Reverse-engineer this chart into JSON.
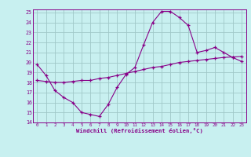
{
  "background_color": "#c8f0f0",
  "grid_color": "#a0c8c8",
  "line_color": "#880088",
  "xlabel": "Windchill (Refroidissement éolien,°C)",
  "xlim": [
    -0.5,
    23.5
  ],
  "ylim": [
    14,
    25.3
  ],
  "yticks": [
    14,
    15,
    16,
    17,
    18,
    19,
    20,
    21,
    22,
    23,
    24,
    25
  ],
  "xticks": [
    0,
    1,
    2,
    3,
    4,
    5,
    6,
    7,
    8,
    9,
    10,
    11,
    12,
    13,
    14,
    15,
    16,
    17,
    18,
    19,
    20,
    21,
    22,
    23
  ],
  "curve1_x": [
    0,
    1,
    2,
    3,
    4,
    5,
    6,
    7,
    8,
    9,
    10,
    11,
    12,
    13,
    14,
    15,
    16,
    17,
    18,
    19,
    20,
    21,
    22,
    23
  ],
  "curve1_y": [
    19.8,
    18.7,
    17.2,
    16.5,
    16.0,
    15.0,
    14.8,
    14.6,
    15.8,
    17.5,
    18.8,
    19.5,
    21.8,
    24.0,
    25.1,
    25.1,
    24.5,
    23.7,
    21.0,
    21.2,
    21.5,
    21.0,
    20.5,
    20.1
  ],
  "curve2_x": [
    0,
    1,
    2,
    3,
    4,
    5,
    6,
    7,
    8,
    9,
    10,
    11,
    12,
    13,
    14,
    15,
    16,
    17,
    18,
    19,
    20,
    21,
    22,
    23
  ],
  "curve2_y": [
    18.2,
    18.1,
    18.0,
    18.0,
    18.1,
    18.2,
    18.2,
    18.4,
    18.5,
    18.7,
    18.9,
    19.1,
    19.3,
    19.5,
    19.6,
    19.8,
    20.0,
    20.1,
    20.2,
    20.3,
    20.4,
    20.5,
    20.55,
    20.6
  ]
}
